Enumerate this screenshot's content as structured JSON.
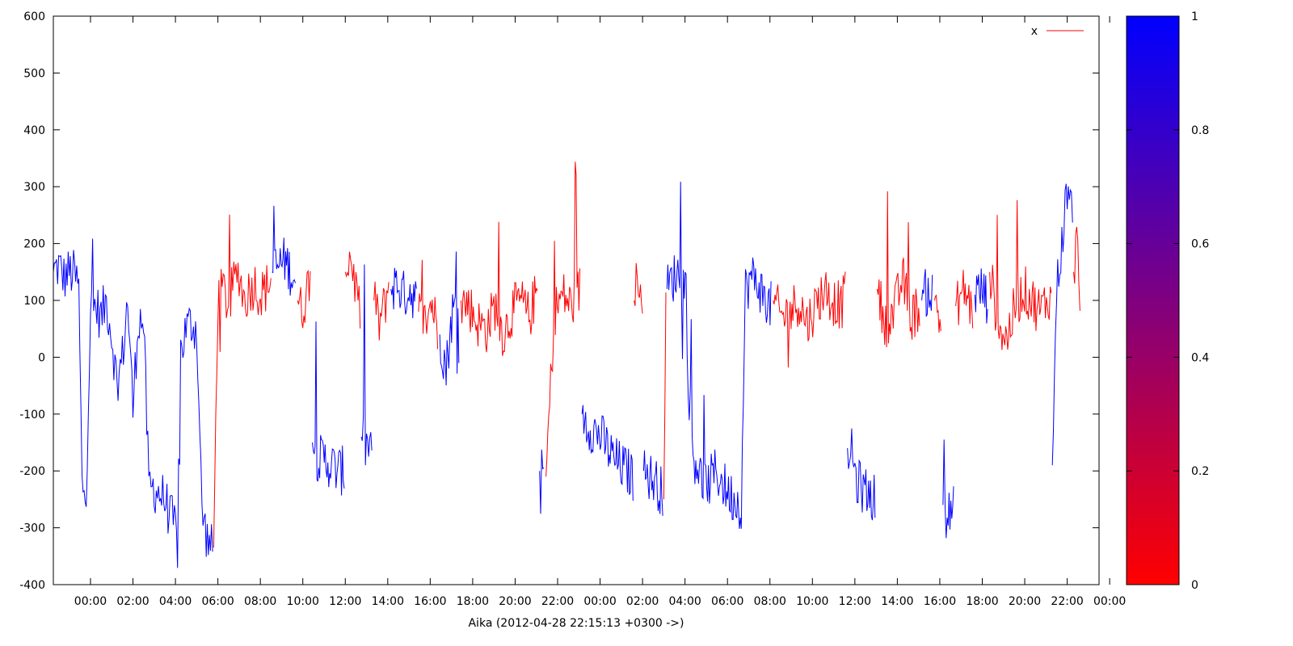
{
  "chart_data": {
    "type": "line",
    "title": "",
    "xlabel": "Aika (2012-04-28 22:15:13 +0300 ->)",
    "ylabel": "",
    "ylim": [
      -400,
      600
    ],
    "y_ticks": [
      "600",
      "500",
      "400",
      "300",
      "200",
      "100",
      "0",
      "-100",
      "-200",
      "-300",
      "-400"
    ],
    "x_ticks": [
      "00:00",
      "02:00",
      "04:00",
      "06:00",
      "08:00",
      "10:00",
      "12:00",
      "14:00",
      "16:00",
      "18:00",
      "20:00",
      "22:00",
      "00:00",
      "02:00",
      "04:00",
      "06:00",
      "08:00",
      "10:00",
      "12:00",
      "14:00",
      "16:00",
      "18:00",
      "20:00",
      "22:00",
      "00:00"
    ],
    "x_unit": "hours since 2012-04-28 22:15:13",
    "xlim": [
      0,
      49.25
    ],
    "grid": false,
    "legend": {
      "label": "x",
      "position": "top-right",
      "color": "#ff0000"
    },
    "colorbar": {
      "ticks": [
        "1",
        "0.8",
        "0.6",
        "0.4",
        "0.2",
        "0"
      ],
      "range": [
        0,
        1
      ],
      "low_color": "#ff0000",
      "high_color": "#0000ff"
    },
    "series": [
      {
        "color_value": 1,
        "color": "#0000ff",
        "points": [
          [
            0.0,
            150
          ],
          [
            0.25,
            160
          ],
          [
            0.5,
            140
          ],
          [
            0.75,
            150
          ],
          [
            1.0,
            145
          ],
          [
            1.2,
            120
          ],
          [
            1.35,
            -225
          ],
          [
            1.55,
            -230
          ],
          [
            1.75,
            80
          ],
          [
            2.0,
            90
          ],
          [
            2.25,
            70
          ],
          [
            2.5,
            100
          ],
          [
            2.75,
            40
          ],
          [
            3.0,
            -50
          ],
          [
            3.25,
            0
          ],
          [
            3.5,
            100
          ],
          [
            3.75,
            -90
          ],
          [
            4.0,
            70
          ],
          [
            4.25,
            60
          ],
          [
            4.5,
            -230
          ],
          [
            4.75,
            -230
          ],
          [
            5.0,
            -240
          ],
          [
            5.25,
            -250
          ],
          [
            5.5,
            -280
          ],
          [
            5.75,
            -300
          ],
          [
            5.9,
            -350
          ],
          [
            6.0,
            10
          ],
          [
            6.25,
            50
          ],
          [
            6.5,
            60
          ],
          [
            6.75,
            50
          ],
          [
            7.0,
            -270
          ],
          [
            7.25,
            -320
          ],
          [
            7.5,
            -340
          ]
        ]
      },
      {
        "color_value": 0,
        "color": "#ff0000",
        "points": [
          [
            7.55,
            -335
          ],
          [
            7.75,
            100
          ],
          [
            8.0,
            120
          ],
          [
            8.25,
            90
          ],
          [
            8.5,
            130
          ],
          [
            8.75,
            150
          ],
          [
            9.0,
            100
          ],
          [
            9.25,
            120
          ],
          [
            9.5,
            130
          ],
          [
            9.75,
            110
          ],
          [
            10.0,
            120
          ],
          [
            10.25,
            140
          ]
        ]
      },
      {
        "color_value": 1,
        "color": "#0000ff",
        "points": [
          [
            10.3,
            150
          ],
          [
            10.6,
            160
          ],
          [
            10.9,
            170
          ],
          [
            11.2,
            150
          ],
          [
            11.4,
            140
          ]
        ]
      },
      {
        "color_value": 0,
        "color": "#ff0000",
        "points": [
          [
            11.5,
            100
          ],
          [
            11.7,
            80
          ],
          [
            11.9,
            110
          ],
          [
            12.1,
            150
          ]
        ]
      },
      {
        "color_value": 1,
        "color": "#0000ff",
        "points": [
          [
            12.2,
            -150
          ],
          [
            12.5,
            -180
          ],
          [
            12.8,
            -180
          ],
          [
            13.1,
            -190
          ],
          [
            13.4,
            -200
          ],
          [
            13.7,
            -200
          ]
        ]
      },
      {
        "color_value": 0,
        "color": "#ff0000",
        "points": [
          [
            13.75,
            150
          ],
          [
            14.0,
            180
          ],
          [
            14.25,
            120
          ],
          [
            14.45,
            80
          ]
        ]
      },
      {
        "color_value": 1,
        "color": "#0000ff",
        "points": [
          [
            14.5,
            -140
          ],
          [
            14.75,
            -160
          ],
          [
            15.0,
            -150
          ]
        ]
      },
      {
        "color_value": 0,
        "color": "#ff0000",
        "points": [
          [
            15.1,
            100
          ],
          [
            15.35,
            60
          ],
          [
            15.6,
            90
          ],
          [
            15.8,
            130
          ]
        ]
      },
      {
        "color_value": 1,
        "color": "#0000ff",
        "points": [
          [
            15.9,
            120
          ],
          [
            16.2,
            130
          ],
          [
            16.5,
            110
          ],
          [
            16.8,
            120
          ],
          [
            17.1,
            100
          ]
        ]
      },
      {
        "color_value": 0,
        "color": "#ff0000",
        "points": [
          [
            17.2,
            80
          ],
          [
            17.5,
            60
          ],
          [
            17.8,
            100
          ],
          [
            18.1,
            50
          ]
        ]
      },
      {
        "color_value": 1,
        "color": "#0000ff",
        "points": [
          [
            18.2,
            40
          ],
          [
            18.5,
            -20
          ],
          [
            18.8,
            80
          ],
          [
            19.1,
            90
          ]
        ]
      },
      {
        "color_value": 0,
        "color": "#ff0000",
        "points": [
          [
            19.2,
            100
          ],
          [
            19.6,
            90
          ],
          [
            20.0,
            60
          ],
          [
            20.4,
            50
          ],
          [
            20.8,
            90
          ],
          [
            21.2,
            40
          ],
          [
            21.6,
            80
          ],
          [
            22.0,
            100
          ],
          [
            22.4,
            70
          ],
          [
            22.8,
            120
          ]
        ]
      },
      {
        "color_value": 1,
        "color": "#0000ff",
        "points": [
          [
            22.9,
            -200
          ],
          [
            23.1,
            -210
          ]
        ]
      },
      {
        "color_value": 0,
        "color": "#ff0000",
        "points": [
          [
            23.2,
            -210
          ],
          [
            23.6,
            80
          ],
          [
            24.0,
            110
          ],
          [
            24.4,
            90
          ],
          [
            24.8,
            120
          ]
        ]
      },
      {
        "color_value": 1,
        "color": "#0000ff",
        "points": [
          [
            24.9,
            -100
          ],
          [
            25.2,
            -120
          ],
          [
            25.5,
            -130
          ],
          [
            25.8,
            -140
          ],
          [
            26.1,
            -160
          ],
          [
            26.4,
            -180
          ],
          [
            26.7,
            -190
          ],
          [
            27.0,
            -200
          ],
          [
            27.3,
            -210
          ]
        ]
      },
      {
        "color_value": 0,
        "color": "#ff0000",
        "points": [
          [
            27.35,
            100
          ],
          [
            27.55,
            150
          ],
          [
            27.75,
            120
          ]
        ]
      },
      {
        "color_value": 1,
        "color": "#0000ff",
        "points": [
          [
            27.8,
            -200
          ],
          [
            28.1,
            -210
          ],
          [
            28.4,
            -220
          ],
          [
            28.7,
            -240
          ]
        ]
      },
      {
        "color_value": 0,
        "color": "#ff0000",
        "points": [
          [
            28.75,
            -250
          ],
          [
            28.85,
            100
          ]
        ]
      },
      {
        "color_value": 1,
        "color": "#0000ff",
        "points": [
          [
            28.9,
            120
          ],
          [
            29.2,
            140
          ],
          [
            29.5,
            150
          ],
          [
            29.8,
            120
          ],
          [
            30.0,
            -170
          ],
          [
            30.3,
            -180
          ],
          [
            30.6,
            -230
          ],
          [
            30.9,
            -220
          ],
          [
            31.2,
            -200
          ],
          [
            31.5,
            -220
          ],
          [
            31.8,
            -240
          ],
          [
            32.1,
            -250
          ],
          [
            32.4,
            -260
          ],
          [
            32.6,
            120
          ],
          [
            32.9,
            140
          ],
          [
            33.2,
            130
          ],
          [
            33.5,
            100
          ],
          [
            33.8,
            90
          ]
        ]
      },
      {
        "color_value": 0,
        "color": "#ff0000",
        "points": [
          [
            33.9,
            100
          ],
          [
            34.3,
            70
          ],
          [
            34.7,
            80
          ],
          [
            35.1,
            100
          ],
          [
            35.5,
            60
          ],
          [
            35.9,
            90
          ],
          [
            36.3,
            120
          ],
          [
            36.7,
            100
          ],
          [
            37.1,
            90
          ],
          [
            37.3,
            110
          ]
        ]
      },
      {
        "color_value": 1,
        "color": "#0000ff",
        "points": [
          [
            37.4,
            -160
          ],
          [
            37.6,
            -170
          ],
          [
            37.85,
            -220
          ],
          [
            38.1,
            -230
          ],
          [
            38.4,
            -240
          ],
          [
            38.7,
            -250
          ]
        ]
      },
      {
        "color_value": 0,
        "color": "#ff0000",
        "points": [
          [
            38.8,
            120
          ],
          [
            39.2,
            60
          ],
          [
            39.6,
            80
          ],
          [
            40.0,
            140
          ],
          [
            40.4,
            70
          ],
          [
            40.8,
            90
          ]
        ]
      },
      {
        "color_value": 1,
        "color": "#0000ff",
        "points": [
          [
            40.9,
            100
          ],
          [
            41.2,
            120
          ],
          [
            41.4,
            110
          ]
        ]
      },
      {
        "color_value": 0,
        "color": "#ff0000",
        "points": [
          [
            41.5,
            100
          ],
          [
            41.8,
            60
          ]
        ]
      },
      {
        "color_value": 1,
        "color": "#0000ff",
        "points": [
          [
            41.9,
            -260
          ],
          [
            42.1,
            -280
          ],
          [
            42.4,
            -270
          ]
        ]
      },
      {
        "color_value": 0,
        "color": "#ff0000",
        "points": [
          [
            42.5,
            90
          ],
          [
            42.9,
            120
          ],
          [
            43.3,
            80
          ]
        ]
      },
      {
        "color_value": 1,
        "color": "#0000ff",
        "points": [
          [
            43.4,
            110
          ],
          [
            43.7,
            120
          ],
          [
            44.0,
            100
          ]
        ]
      },
      {
        "color_value": 0,
        "color": "#ff0000",
        "points": [
          [
            44.1,
            150
          ],
          [
            44.5,
            60
          ],
          [
            44.9,
            30
          ],
          [
            45.3,
            90
          ],
          [
            45.7,
            120
          ],
          [
            46.1,
            100
          ],
          [
            46.5,
            80
          ],
          [
            46.9,
            110
          ],
          [
            47.0,
            90
          ]
        ]
      },
      {
        "color_value": 1,
        "color": "#0000ff",
        "points": [
          [
            47.05,
            -190
          ],
          [
            47.25,
            120
          ],
          [
            47.5,
            200
          ],
          [
            47.75,
            300
          ],
          [
            48.0,
            250
          ]
        ]
      },
      {
        "color_value": 0,
        "color": "#ff0000",
        "points": [
          [
            48.05,
            150
          ],
          [
            48.2,
            200
          ],
          [
            48.35,
            120
          ]
        ]
      }
    ]
  }
}
